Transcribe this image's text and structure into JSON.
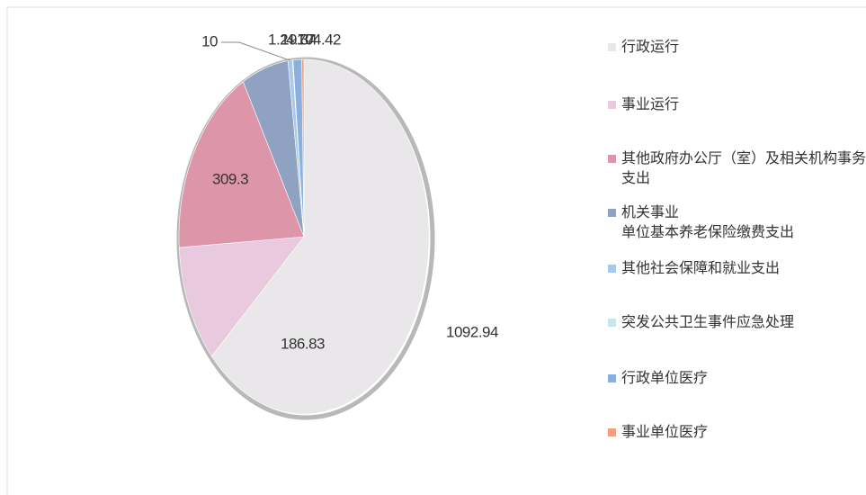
{
  "chart_data": {
    "type": "pie",
    "categories": [
      "行政运行",
      "事业运行",
      "其他政府办公厅（室）及相关机构事务支出",
      "机关事业\n单位基本养老保险缴费支出",
      "其他社会保障和就业支出",
      "突发公共卫生事件应急处理",
      "行政单位医疗",
      "事业单位医疗"
    ],
    "values": [
      1092.94,
      186.83,
      309.3,
      104.42,
      10,
      1.2,
      19.34,
      4.77
    ],
    "colors": [
      "#e9e7e9",
      "#e8c9de",
      "#dd95aa",
      "#8fa2c2",
      "#a9c9ea",
      "#c9e7e7",
      "#8cb0dd",
      "#f2a07f"
    ]
  }
}
